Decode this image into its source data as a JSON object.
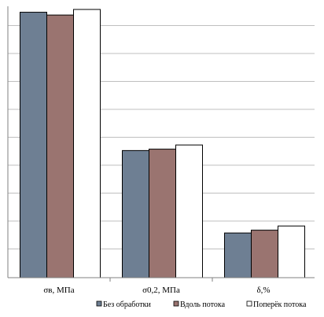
{
  "chart_data": {
    "type": "bar",
    "categories": [
      "σв, МПа",
      "σ0,2, МПа",
      "δ,%"
    ],
    "series": [
      {
        "name": "Без обработки",
        "color": "#6e7f93",
        "values": [
          95,
          45.5,
          16
        ]
      },
      {
        "name": "Вдоль потока",
        "color": "#9a7470",
        "values": [
          94,
          46,
          17
        ]
      },
      {
        "name": "Поперёк потока",
        "color": "#ffffff",
        "values": [
          96,
          47.5,
          18.5
        ]
      }
    ],
    "ylim": [
      0,
      96
    ],
    "grid": true,
    "legend_position": "bottom",
    "xlabel": "",
    "ylabel": "",
    "title": ""
  }
}
